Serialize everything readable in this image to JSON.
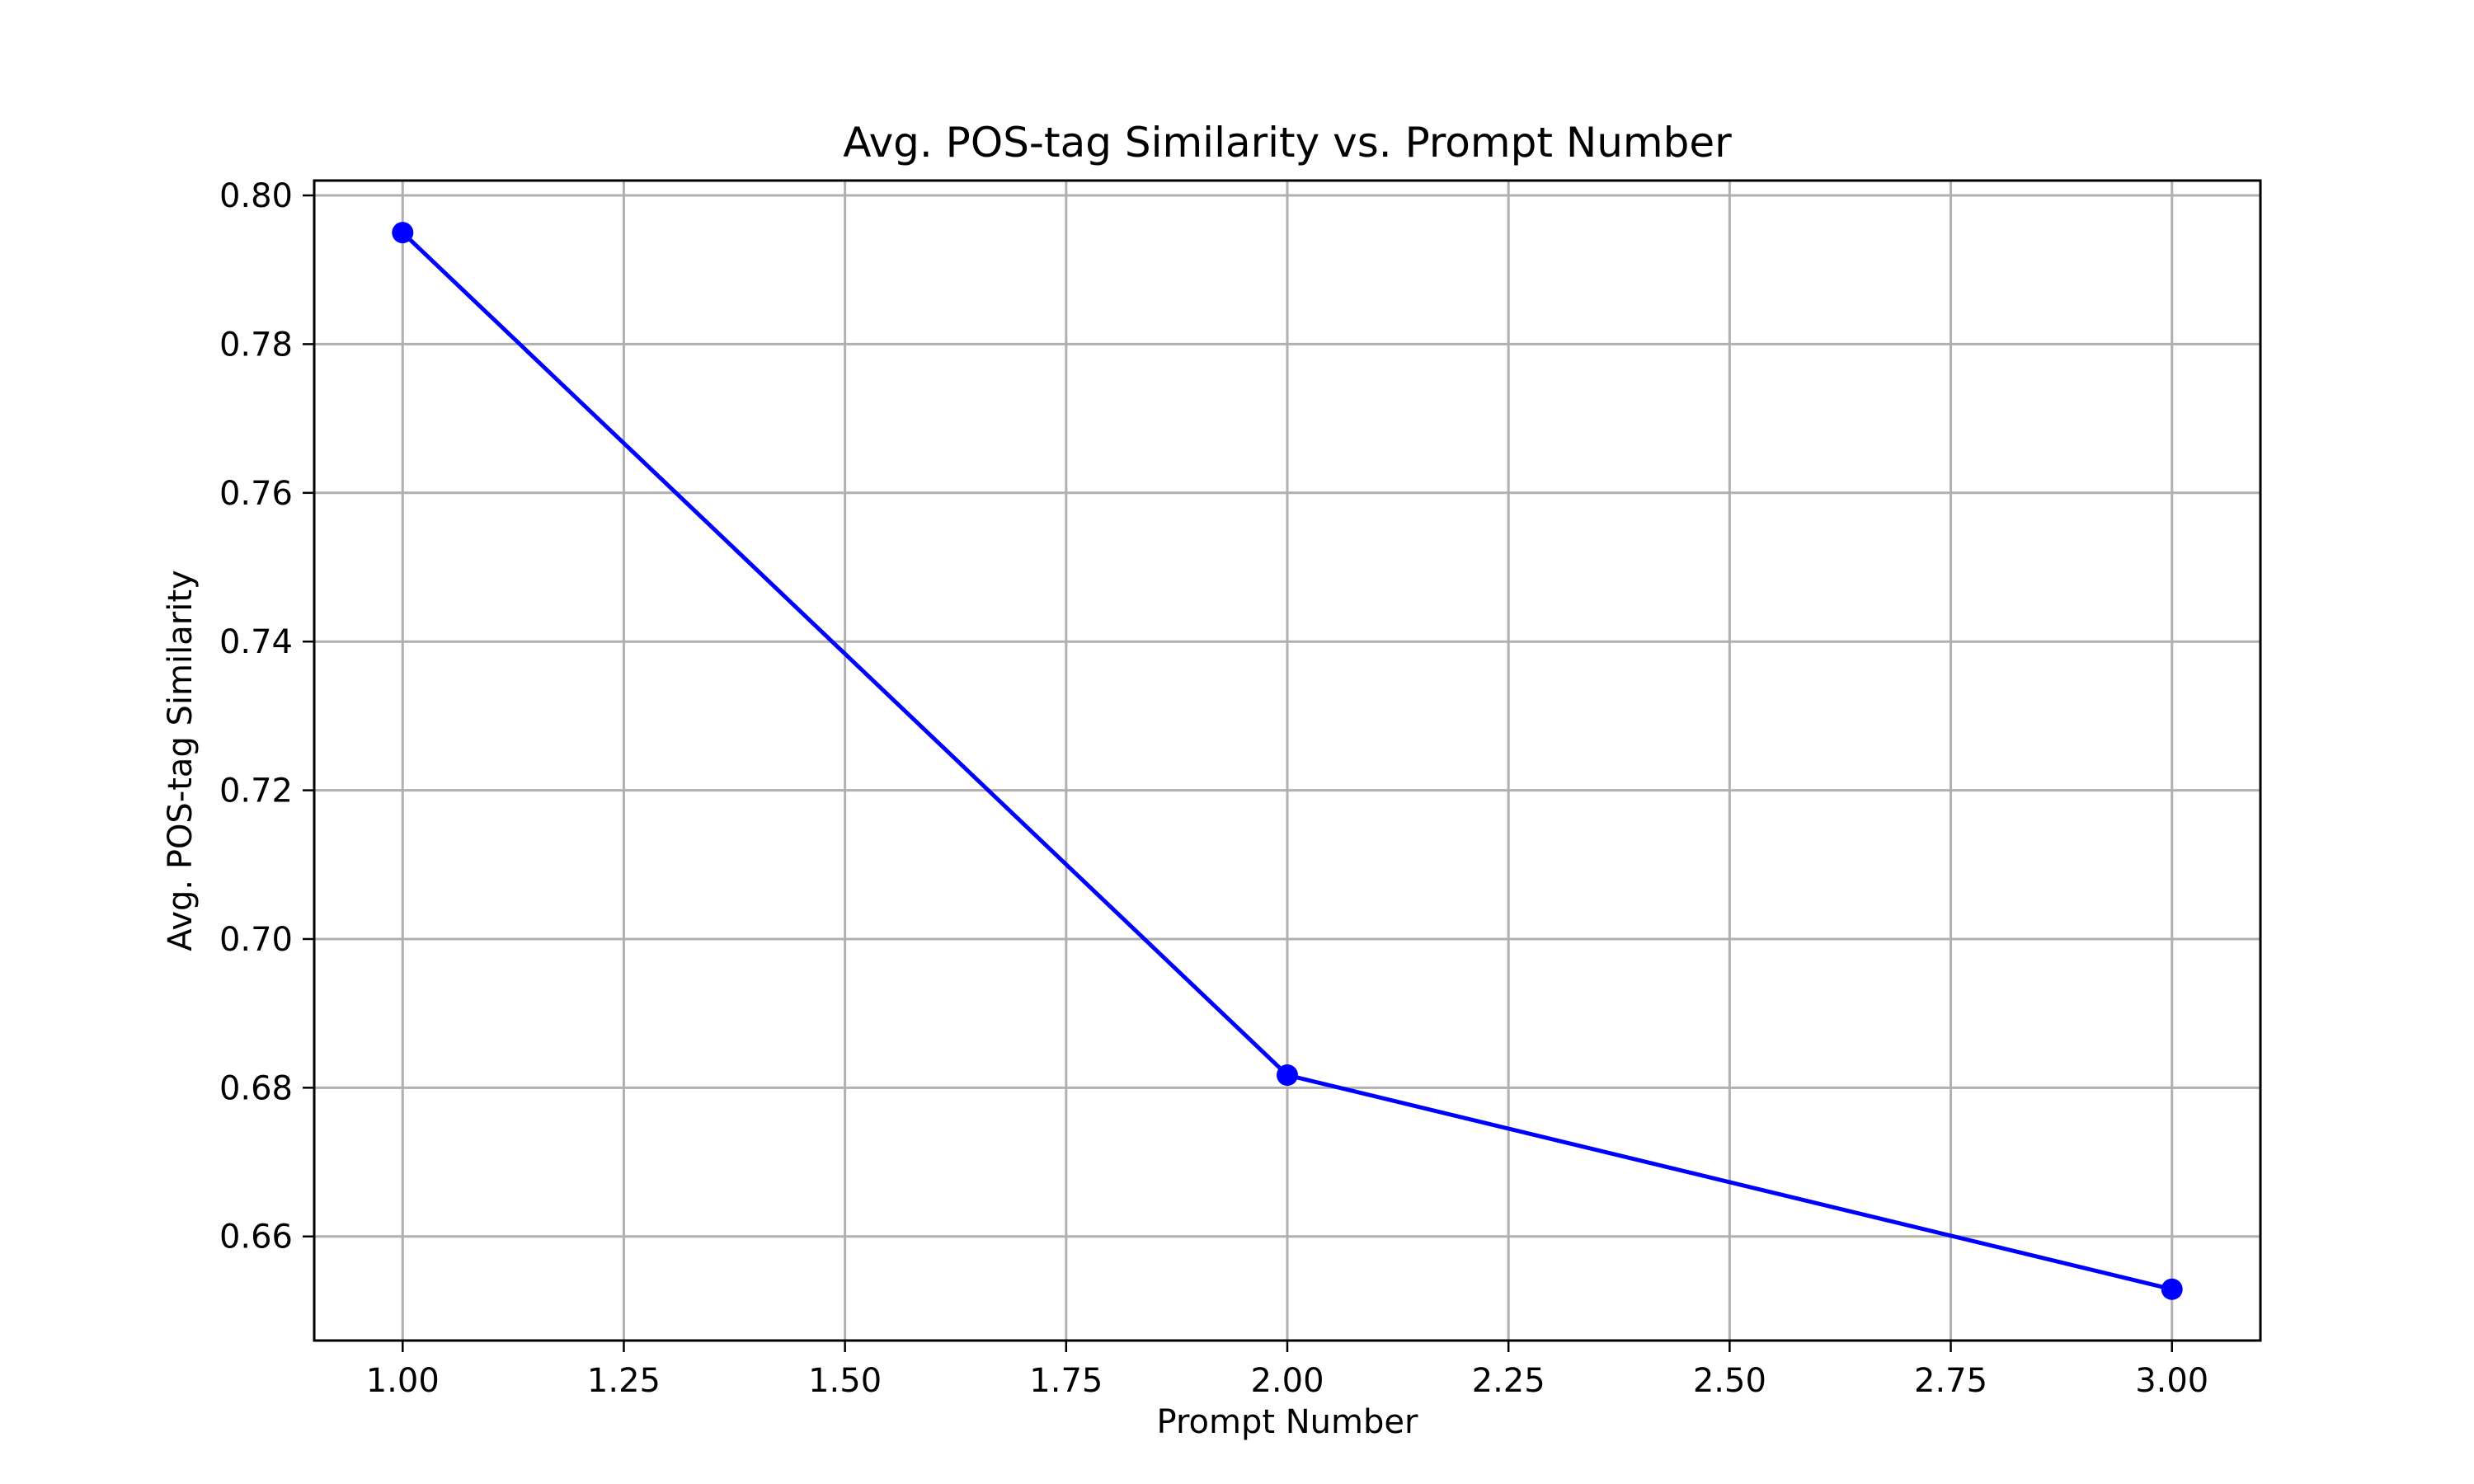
{
  "chart_data": {
    "type": "line",
    "title": "Avg. POS-tag Similarity vs. Prompt Number",
    "xlabel": "Prompt Number",
    "ylabel": "Avg. POS-tag Similarity",
    "xlim": [
      0.9,
      3.1
    ],
    "ylim": [
      0.646,
      0.802
    ],
    "xticks": [
      1.0,
      1.25,
      1.5,
      1.75,
      2.0,
      2.25,
      2.5,
      2.75,
      3.0
    ],
    "xtick_labels": [
      "1.00",
      "1.25",
      "1.50",
      "1.75",
      "2.00",
      "2.25",
      "2.50",
      "2.75",
      "3.00"
    ],
    "yticks": [
      0.66,
      0.68,
      0.7,
      0.72,
      0.74,
      0.76,
      0.78,
      0.8
    ],
    "ytick_labels": [
      "0.66",
      "0.68",
      "0.70",
      "0.72",
      "0.74",
      "0.76",
      "0.78",
      "0.80"
    ],
    "grid": true,
    "series": [
      {
        "color": "#0000ff",
        "marker": "circle",
        "x": [
          1,
          2,
          3
        ],
        "y": [
          0.795,
          0.6817,
          0.6529
        ]
      }
    ]
  }
}
